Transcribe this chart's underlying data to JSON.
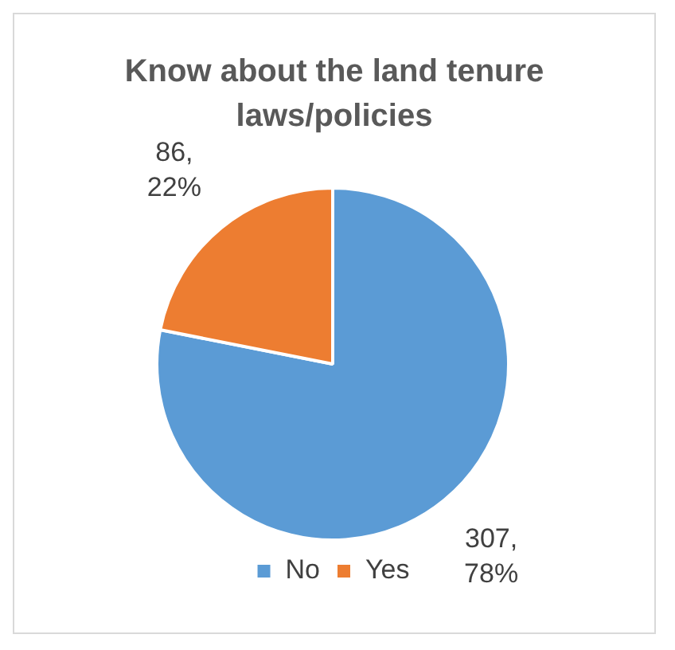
{
  "chart_data": {
    "type": "pie",
    "title": "Know about the land tenure laws/policies",
    "categories": [
      "No",
      "Yes"
    ],
    "values": [
      307,
      86
    ],
    "colors": [
      "#5b9bd5",
      "#ed7d31"
    ],
    "value_labels": [
      "307,\n78%",
      "86,\n22%"
    ],
    "legend": "bottom"
  }
}
